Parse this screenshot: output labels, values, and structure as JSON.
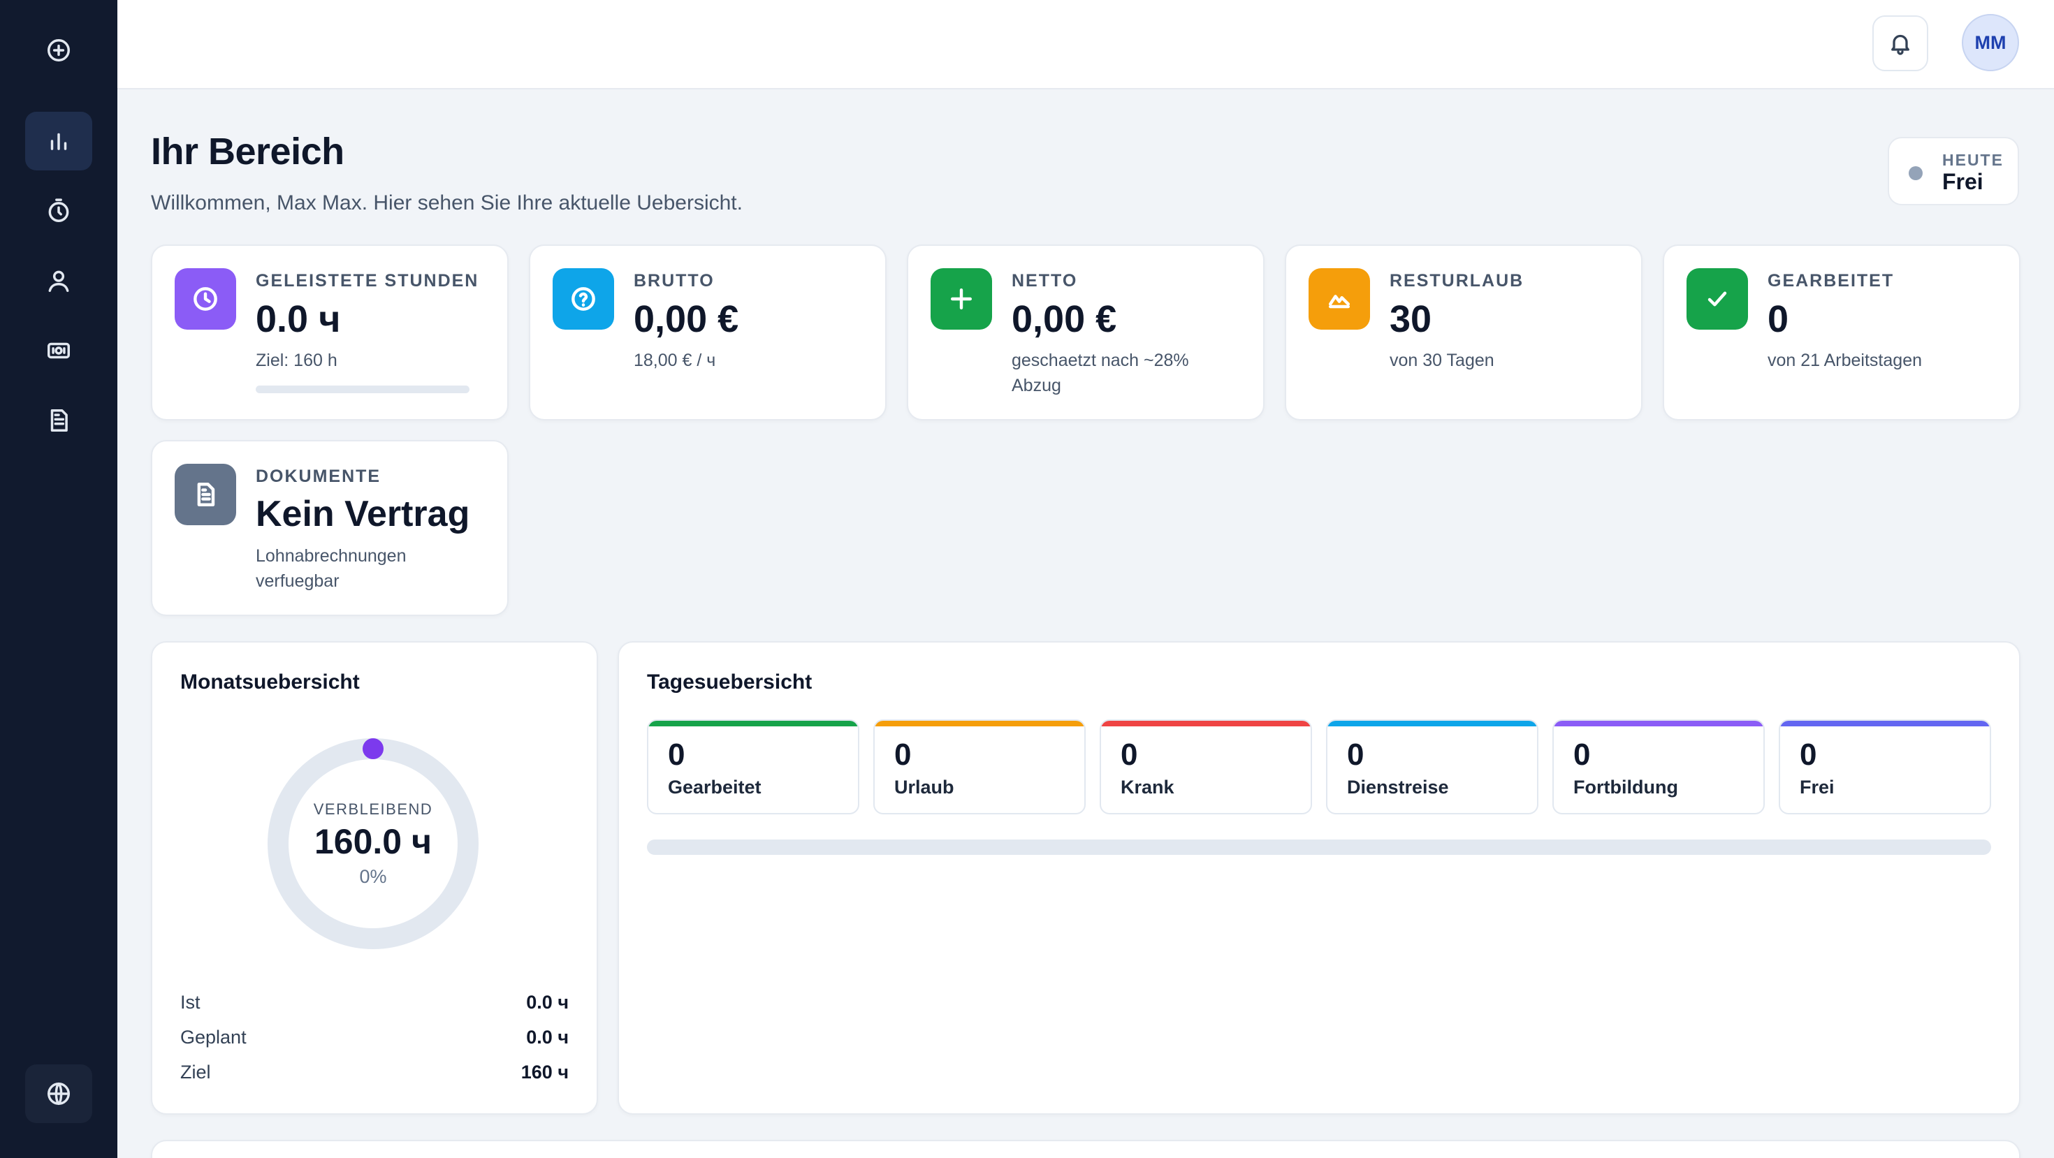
{
  "sidebar": {
    "top_icon": "plus-circle-icon",
    "items": [
      {
        "name": "dashboard",
        "icon": "bar-chart-icon",
        "active": true
      },
      {
        "name": "time-tracking",
        "icon": "stopwatch-icon",
        "active": false
      },
      {
        "name": "profile",
        "icon": "user-icon",
        "active": false
      },
      {
        "name": "payroll",
        "icon": "banknote-icon",
        "active": false
      },
      {
        "name": "documents",
        "icon": "document-icon",
        "active": false
      }
    ],
    "bottom_icon": "globe-icon"
  },
  "topbar": {
    "notifications_icon": "bell-icon",
    "avatar_initials": "MM"
  },
  "header": {
    "title": "Ihr Bereich",
    "subtitle": "Willkommen, Max Max. Hier sehen Sie Ihre aktuelle Uebersicht.",
    "today_label": "HEUTE",
    "today_value": "Frei"
  },
  "stats": [
    {
      "label": "GELEISTETE STUNDEN",
      "value": "0.0 ч",
      "sub": "Ziel: 160 h",
      "icon": "clock-icon",
      "color": "#8b5cf6",
      "progress": 0
    },
    {
      "label": "BRUTTO",
      "value": "0,00 €",
      "sub": "18,00 € / ч",
      "icon": "help-circle-icon",
      "color": "#0ea5e9"
    },
    {
      "label": "NETTO",
      "value": "0,00 €",
      "sub": "geschaetzt nach ~28% Abzug",
      "icon": "plus-icon",
      "color": "#16a34a"
    },
    {
      "label": "RESTURLAUB",
      "value": "30",
      "sub": "von 30 Tagen",
      "icon": "mountain-icon",
      "color": "#f59e0b"
    },
    {
      "label": "GEARBEITET",
      "value": "0",
      "sub": "von 21 Arbeitstagen",
      "icon": "check-icon",
      "color": "#16a34a"
    },
    {
      "label": "DOKUMENTE",
      "value": "Kein Vertrag",
      "sub": "Lohnabrechnungen verfuegbar",
      "icon": "file-text-icon",
      "color": "#64748b"
    }
  ],
  "month": {
    "title": "Monatsuebersicht",
    "ring_label": "VERBLEIBEND",
    "ring_value": "160.0 ч",
    "ring_percent": "0%",
    "progress": 0,
    "rows": [
      {
        "label": "Ist",
        "value": "0.0 ч"
      },
      {
        "label": "Geplant",
        "value": "0.0 ч"
      },
      {
        "label": "Ziel",
        "value": "160 ч"
      }
    ]
  },
  "days": {
    "title": "Tagesuebersicht",
    "items": [
      {
        "count": "0",
        "label": "Gearbeitet",
        "color": "#16a34a"
      },
      {
        "count": "0",
        "label": "Urlaub",
        "color": "#f59e0b"
      },
      {
        "count": "0",
        "label": "Krank",
        "color": "#ef4444"
      },
      {
        "count": "0",
        "label": "Dienstreise",
        "color": "#0ea5e9"
      },
      {
        "count": "0",
        "label": "Fortbildung",
        "color": "#8b5cf6"
      },
      {
        "count": "0",
        "label": "Frei",
        "color": "#6366f1"
      }
    ],
    "progress": 0
  }
}
